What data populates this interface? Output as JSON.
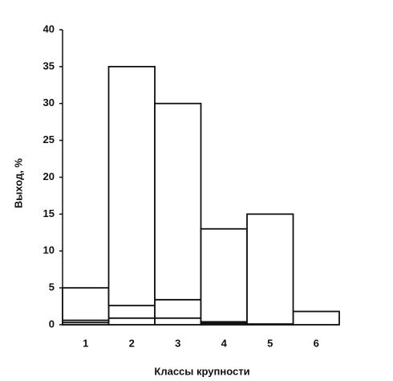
{
  "chart_data": {
    "type": "bar",
    "stacked": true,
    "x_label": "Классы крупности",
    "y_label": "Выход, %",
    "categories": [
      "1",
      "2",
      "3",
      "4",
      "5",
      "6"
    ],
    "series": [
      {
        "color": "#ffffff",
        "values": [
          0.3,
          0.9,
          0.9,
          0.2,
          0.1,
          1.8
        ]
      },
      {
        "color": "#ffffff",
        "values": [
          0.3,
          1.7,
          2.5,
          0.2,
          0,
          0
        ]
      },
      {
        "color": "#ffffff",
        "values": [
          4.4,
          32.4,
          26.6,
          12.6,
          14.9,
          0
        ]
      }
    ],
    "ylim": [
      0,
      40
    ],
    "yticks": [
      0,
      5,
      10,
      15,
      20,
      25,
      30,
      35,
      40
    ],
    "grid": false
  }
}
